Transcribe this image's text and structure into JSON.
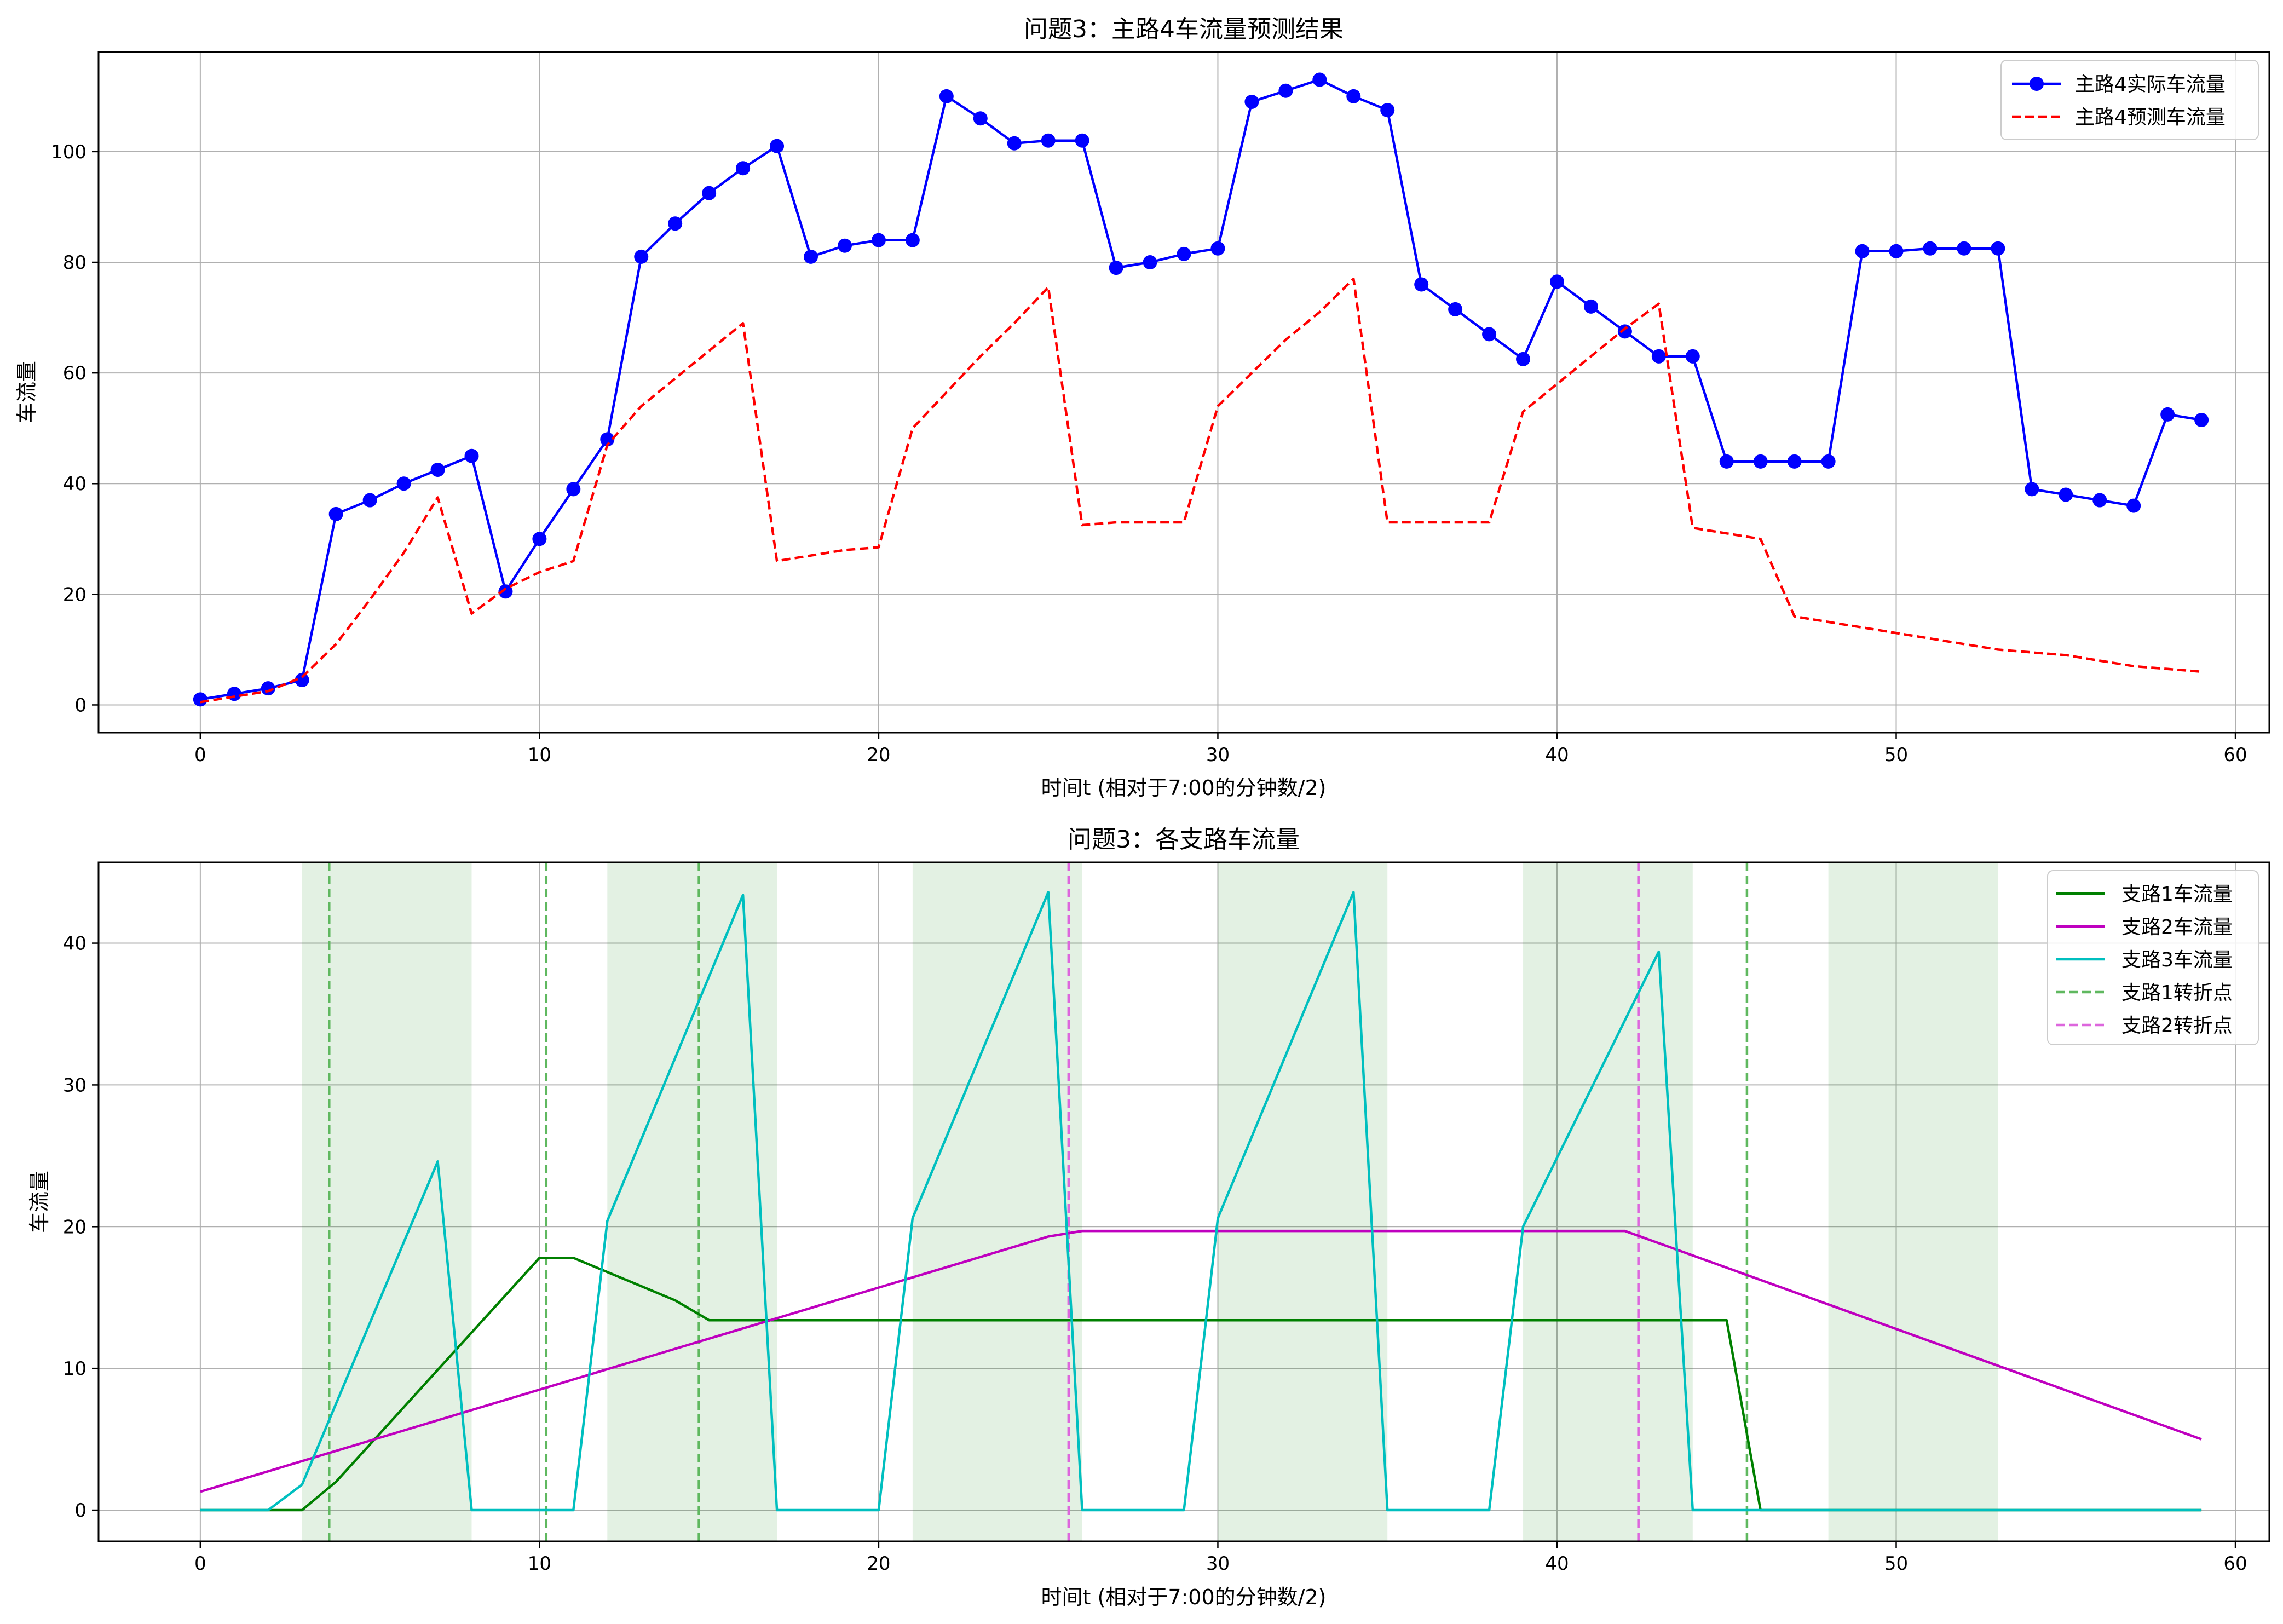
{
  "chart_data": [
    {
      "type": "line",
      "title": "问题3：主路4车流量预测结果",
      "xlabel": "时间t (相对于7:00的分钟数/2)",
      "ylabel": "车流量",
      "xlim": [
        -3,
        61
      ],
      "ylim": [
        -5,
        118
      ],
      "xticks": [
        0,
        10,
        20,
        30,
        40,
        50,
        60
      ],
      "yticks": [
        0,
        20,
        40,
        60,
        80,
        100
      ],
      "grid": true,
      "legend_position": "top-right",
      "series": [
        {
          "name": "主路4实际车流量",
          "color": "#0000ff",
          "style": "solid-marker",
          "x": [
            0,
            1,
            2,
            3,
            4,
            5,
            6,
            7,
            8,
            9,
            10,
            11,
            12,
            13,
            14,
            15,
            16,
            17,
            18,
            19,
            20,
            21,
            22,
            23,
            24,
            25,
            26,
            27,
            28,
            29,
            30,
            31,
            32,
            33,
            34,
            35,
            36,
            37,
            38,
            39,
            40,
            41,
            42,
            43,
            44,
            45,
            46,
            47,
            48,
            49,
            50,
            51,
            52,
            53,
            54,
            55,
            56,
            57,
            58,
            59
          ],
          "y": [
            1,
            2,
            3,
            4.5,
            34.5,
            37,
            40,
            42.5,
            45,
            20.5,
            30,
            39,
            48,
            81,
            87,
            92.5,
            97,
            101,
            81,
            83,
            84,
            84,
            110,
            106,
            101.5,
            102,
            102,
            79,
            80,
            81.5,
            82.5,
            109,
            111,
            113,
            110,
            107.5,
            76,
            71.5,
            67,
            62.5,
            76.5,
            72,
            67.5,
            63,
            63,
            44,
            44,
            44,
            44,
            82,
            82,
            82.5,
            82.5,
            82.5,
            39,
            38,
            37,
            36,
            52.5,
            51.5
          ]
        },
        {
          "name": "主路4预测车流量",
          "color": "#ff0000",
          "style": "dashed",
          "x": [
            0,
            1,
            2,
            3,
            4,
            5,
            6,
            7,
            8,
            9,
            10,
            11,
            12,
            13,
            14,
            15,
            16,
            17,
            18,
            19,
            20,
            21,
            22,
            23,
            24,
            25,
            26,
            27,
            28,
            29,
            30,
            31,
            32,
            33,
            34,
            35,
            36,
            37,
            38,
            39,
            40,
            41,
            42,
            43,
            44,
            45,
            46,
            47,
            48,
            49,
            50,
            51,
            52,
            53,
            54,
            55,
            56,
            57,
            58,
            59
          ],
          "y": [
            0.5,
            1.5,
            2.5,
            5,
            11,
            19,
            27.5,
            37.5,
            16.5,
            21,
            24,
            26,
            47,
            54,
            59,
            64,
            69,
            26,
            27,
            28,
            28.5,
            50,
            56.5,
            63,
            69,
            75.5,
            32.5,
            33,
            33,
            33,
            54,
            60,
            66,
            71,
            77,
            33,
            33,
            33,
            33,
            53,
            58,
            63,
            68,
            72.5,
            32,
            31,
            30,
            16,
            15,
            14,
            13,
            12,
            11,
            10,
            9.5,
            9,
            8,
            7,
            6.5,
            6
          ]
        }
      ]
    },
    {
      "type": "line",
      "title": "问题3：各支路车流量",
      "xlabel": "时间t (相对于7:00的分钟数/2)",
      "ylabel": "车流量",
      "xlim": [
        -3,
        61
      ],
      "ylim": [
        -2.2,
        45.7
      ],
      "xticks": [
        0,
        10,
        20,
        30,
        40,
        50,
        60
      ],
      "yticks": [
        0,
        10,
        20,
        30,
        40
      ],
      "grid": true,
      "legend_position": "top-right",
      "shaded_regions": [
        [
          3,
          8
        ],
        [
          12,
          17
        ],
        [
          21,
          26
        ],
        [
          30,
          35
        ],
        [
          39,
          44
        ],
        [
          48,
          53
        ]
      ],
      "series": [
        {
          "name": "支路1车流量",
          "color": "#008000",
          "style": "solid",
          "x": [
            0,
            2,
            3,
            4,
            10,
            11,
            14,
            15,
            45,
            46,
            59
          ],
          "y": [
            0,
            0,
            0,
            2,
            17.8,
            17.8,
            14.8,
            13.4,
            13.4,
            0,
            0
          ]
        },
        {
          "name": "支路2车流量",
          "color": "#bf00bf",
          "style": "solid",
          "x": [
            0,
            25,
            26,
            42,
            59
          ],
          "y": [
            1.3,
            19.3,
            19.7,
            19.7,
            5
          ]
        },
        {
          "name": "支路3车流量",
          "color": "#00bfbf",
          "style": "solid",
          "x": [
            0,
            2,
            3,
            7,
            8,
            11,
            12,
            16,
            17,
            20,
            21,
            25,
            26,
            29,
            30,
            34,
            35,
            38,
            39,
            43,
            44,
            59
          ],
          "y": [
            0,
            0,
            1.8,
            24.6,
            0,
            0,
            20.4,
            43.4,
            0,
            0,
            20.6,
            43.6,
            0,
            0,
            20.6,
            43.6,
            0,
            0,
            20,
            39.4,
            0,
            0
          ]
        },
        {
          "name": "支路1转折点",
          "color": "#5fb85f",
          "style": "dashed-vline",
          "x": [
            3.8,
            10.2,
            14.7,
            45.6
          ]
        },
        {
          "name": "支路2转折点",
          "color": "#dd66dd",
          "style": "dashed-vline",
          "x": [
            25.6,
            42.4
          ]
        }
      ]
    }
  ]
}
